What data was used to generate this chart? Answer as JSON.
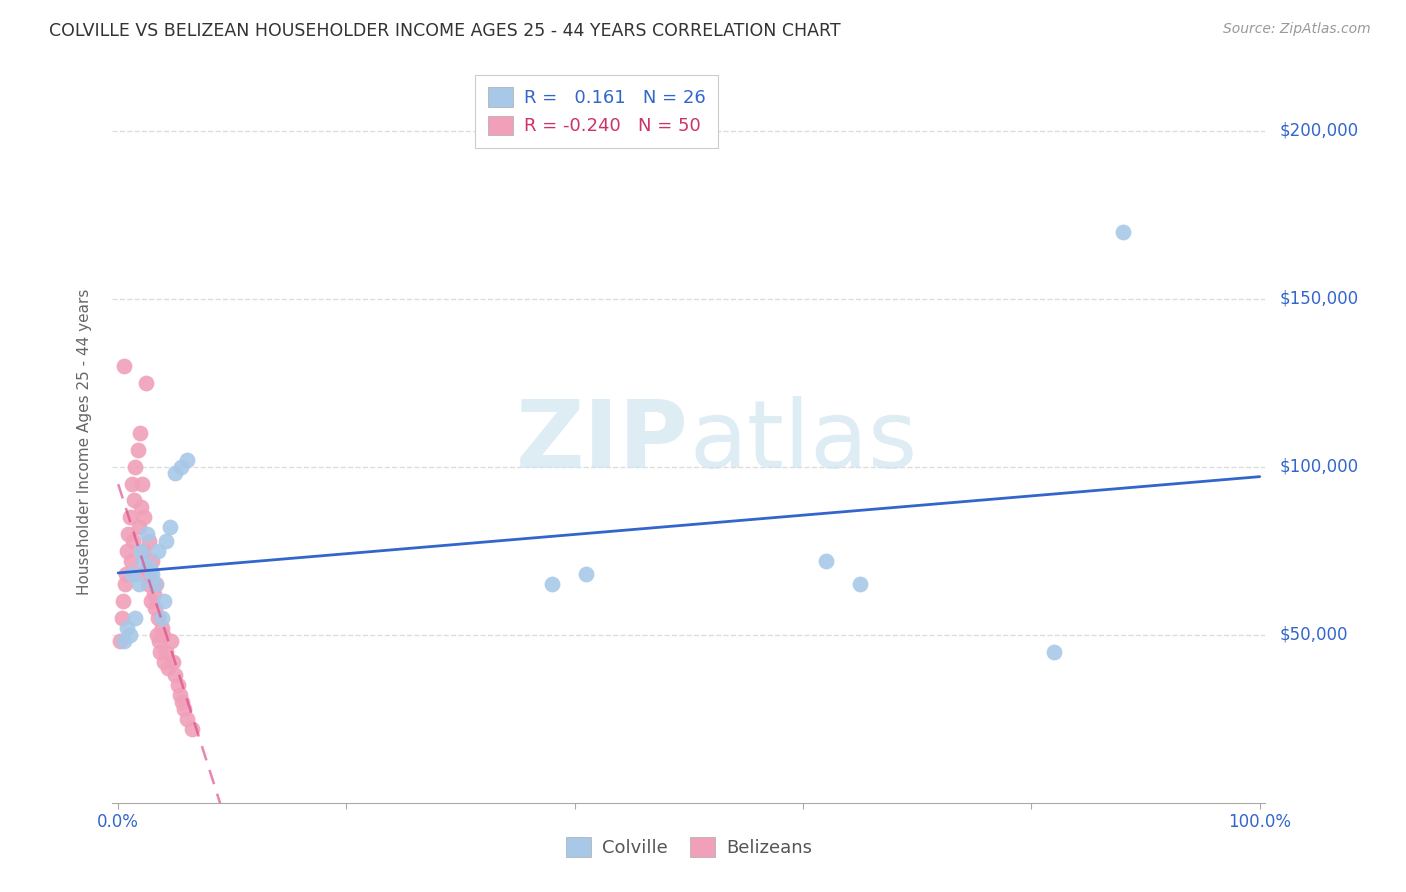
{
  "title": "COLVILLE VS BELIZEAN HOUSEHOLDER INCOME AGES 25 - 44 YEARS CORRELATION CHART",
  "source": "Source: ZipAtlas.com",
  "ylabel": "Householder Income Ages 25 - 44 years",
  "legend_label1": "Colville",
  "legend_label2": "Belizeans",
  "r1": 0.161,
  "n1": 26,
  "r2": -0.24,
  "n2": 50,
  "colville_color": "#a8c8e8",
  "belizean_color": "#f0a0b8",
  "colville_line_color": "#3366cc",
  "belizean_line_color": "#dd4488",
  "watermark_color": "#d0e4f0",
  "ytick_labels": [
    "$50,000",
    "$100,000",
    "$150,000",
    "$200,000"
  ],
  "ytick_values": [
    50000,
    100000,
    150000,
    200000
  ],
  "grid_color": "#dddddd",
  "colville_x": [
    0.005,
    0.008,
    0.01,
    0.012,
    0.015,
    0.018,
    0.02,
    0.022,
    0.025,
    0.028,
    0.03,
    0.032,
    0.035,
    0.038,
    0.04,
    0.042,
    0.045,
    0.05,
    0.055,
    0.06,
    0.38,
    0.41,
    0.62,
    0.65,
    0.82,
    0.88
  ],
  "colville_y": [
    48000,
    52000,
    50000,
    68000,
    55000,
    65000,
    75000,
    72000,
    80000,
    70000,
    68000,
    65000,
    75000,
    55000,
    60000,
    78000,
    82000,
    98000,
    100000,
    102000,
    65000,
    68000,
    72000,
    65000,
    45000,
    170000
  ],
  "belizean_x": [
    0.002,
    0.003,
    0.004,
    0.005,
    0.006,
    0.007,
    0.008,
    0.009,
    0.01,
    0.011,
    0.012,
    0.013,
    0.014,
    0.015,
    0.016,
    0.017,
    0.018,
    0.019,
    0.02,
    0.021,
    0.022,
    0.023,
    0.024,
    0.025,
    0.026,
    0.027,
    0.028,
    0.029,
    0.03,
    0.031,
    0.032,
    0.033,
    0.034,
    0.035,
    0.036,
    0.037,
    0.038,
    0.039,
    0.04,
    0.042,
    0.044,
    0.046,
    0.048,
    0.05,
    0.052,
    0.054,
    0.056,
    0.058,
    0.06,
    0.065
  ],
  "belizean_y": [
    48000,
    55000,
    60000,
    130000,
    65000,
    68000,
    75000,
    80000,
    85000,
    72000,
    95000,
    78000,
    90000,
    100000,
    68000,
    105000,
    82000,
    110000,
    88000,
    95000,
    75000,
    85000,
    125000,
    70000,
    65000,
    78000,
    68000,
    60000,
    72000,
    62000,
    58000,
    65000,
    50000,
    55000,
    48000,
    45000,
    52000,
    50000,
    42000,
    45000,
    40000,
    48000,
    42000,
    38000,
    35000,
    32000,
    30000,
    28000,
    25000,
    22000
  ]
}
